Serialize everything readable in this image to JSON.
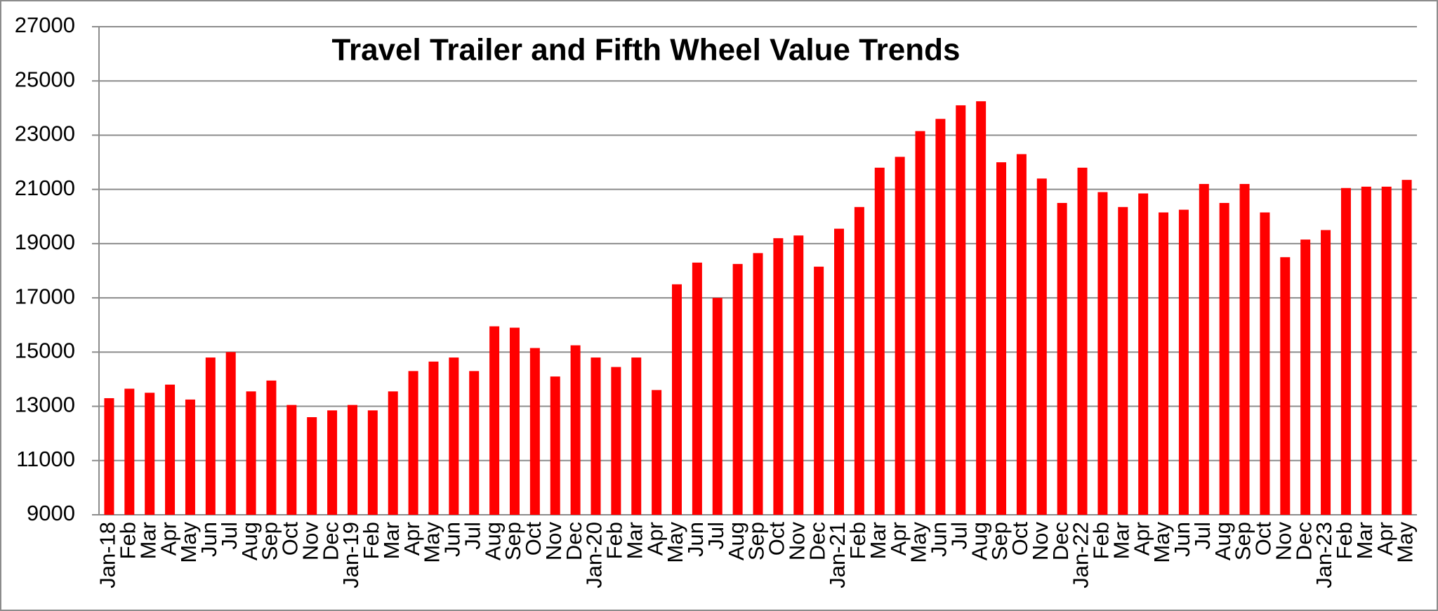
{
  "chart_data": {
    "type": "bar",
    "title": "Travel Trailer and Fifth Wheel Value Trends",
    "categories": [
      "Jan-18",
      "Feb",
      "Mar",
      "Apr",
      "May",
      "Jun",
      "Jul",
      "Aug",
      "Sep",
      "Oct",
      "Nov",
      "Dec",
      "Jan-19",
      "Feb",
      "Mar",
      "Apr",
      "May",
      "Jun",
      "Jul",
      "Aug",
      "Sep",
      "Oct",
      "Nov",
      "Dec",
      "Jan-20",
      "Feb",
      "Mar",
      "Apr",
      "May",
      "Jun",
      "Jul",
      "Aug",
      "Sep",
      "Oct",
      "Nov",
      "Dec",
      "Jan-21",
      "Feb",
      "Mar",
      "Apr",
      "May",
      "Jun",
      "Jul",
      "Aug",
      "Sep",
      "Oct",
      "Nov",
      "Dec",
      "Jan-22",
      "Feb",
      "Mar",
      "Apr",
      "May",
      "Jun",
      "Jul",
      "Aug",
      "Sep",
      "Oct",
      "Nov",
      "Dec",
      "Jan-23",
      "Feb",
      "Mar",
      "Apr",
      "May"
    ],
    "values": [
      13300,
      13650,
      13500,
      13800,
      13250,
      14800,
      15000,
      13550,
      13950,
      13050,
      12600,
      12850,
      13050,
      12850,
      13550,
      14300,
      14650,
      14800,
      14300,
      15950,
      15900,
      15150,
      14100,
      15250,
      14800,
      14450,
      14800,
      13600,
      17500,
      18300,
      17000,
      18250,
      18650,
      19200,
      19300,
      18150,
      19550,
      20350,
      21800,
      22200,
      23150,
      23600,
      24100,
      24250,
      22000,
      22300,
      21400,
      20500,
      21800,
      20900,
      20350,
      20850,
      20150,
      20250,
      21200,
      20500,
      21200,
      20150,
      18500,
      19150,
      19500,
      21050,
      21100,
      21100,
      21350
    ],
    "color": "#ff0000",
    "ylim": [
      9000,
      27000
    ],
    "yticks": [
      9000,
      11000,
      13000,
      15000,
      17000,
      19000,
      21000,
      23000,
      25000,
      27000
    ],
    "grid": true
  }
}
